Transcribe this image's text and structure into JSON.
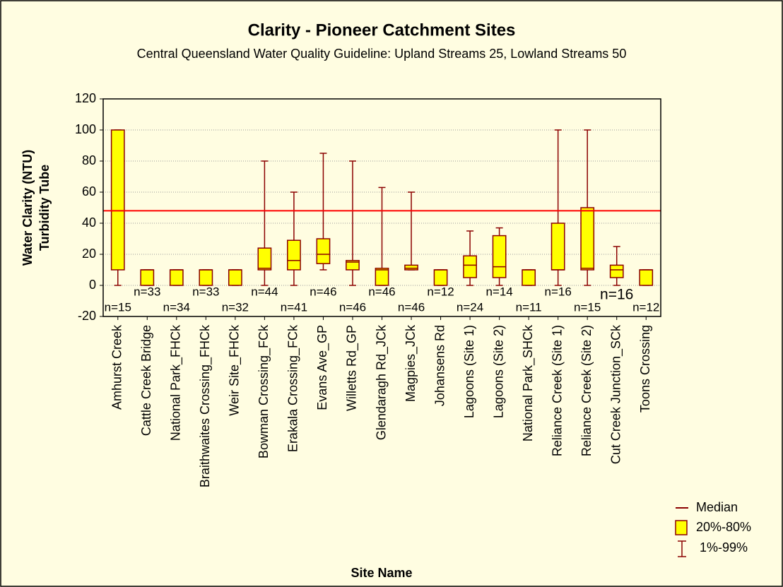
{
  "chart_data": {
    "type": "box",
    "title": "Clarity - Pioneer Catchment Sites",
    "subtitle": "Central Queensland Water Quality Guideline: Upland Streams 25, Lowland Streams 50",
    "x_label": "Site Name",
    "y_label": [
      "Water Clarity (NTU)",
      "Turbidity Tube"
    ],
    "categories": [
      "Amhurst Creek",
      "Cattle Creek Bridge",
      "National Park_FHCk",
      "Braithwaites Crossing_FHCk",
      "Weir Site_FHCk",
      "Bowman Crossing_FCk",
      "Erakala Crossing_FCk",
      "Evans Ave_GP",
      "Willetts Rd_GP",
      "Glendaragh Rd_JCk",
      "Magpies_JCk",
      "Johansens Rd",
      "Lagoons (Site 1)",
      "Lagoons (Site 2)",
      "National Park_SHCk",
      "Reliance Creek (Site 1)",
      "Reliance Creek (Site 2)",
      "Cut Creek Junction_SCk",
      "Toons Crossing"
    ],
    "low": [
      0,
      0,
      0,
      0,
      0,
      0,
      0,
      10,
      0,
      0,
      10,
      0,
      0,
      0,
      0,
      0,
      0,
      0,
      0
    ],
    "q20": [
      10,
      0,
      0,
      0,
      0,
      10,
      10,
      14,
      10,
      0,
      10,
      0,
      5,
      5,
      0,
      10,
      10,
      5,
      0
    ],
    "median": [
      48,
      10,
      10,
      10,
      10,
      11,
      16,
      20,
      15,
      10,
      11,
      10,
      13,
      12,
      10,
      10,
      11,
      10,
      10
    ],
    "q80": [
      100,
      10,
      10,
      10,
      10,
      24,
      29,
      30,
      16,
      11,
      13,
      10,
      19,
      32,
      10,
      40,
      50,
      13,
      10
    ],
    "high": [
      100,
      10,
      10,
      10,
      10,
      80,
      60,
      85,
      80,
      63,
      60,
      10,
      35,
      37,
      10,
      100,
      100,
      25,
      10
    ],
    "n_labels": [
      "n=15",
      "n=33",
      "n=34",
      "n=33",
      "n=32",
      "n=44",
      "n=41",
      "n=46",
      "n=46",
      "n=46",
      "n=46",
      "n=12",
      "n=24",
      "n=14",
      "n=11",
      "n=16",
      "n=15",
      "n=16",
      "n=12"
    ],
    "reference_line": 48,
    "ylim": [
      -20,
      120
    ],
    "yticks": [
      -20,
      0,
      20,
      40,
      60,
      80,
      100,
      120
    ],
    "grid": true,
    "box_color": "#ffff00",
    "edge_color": "#8b0000",
    "reference_color": "#ff0000",
    "legend": [
      "Median",
      "20%-80%",
      "1%-99%"
    ]
  }
}
